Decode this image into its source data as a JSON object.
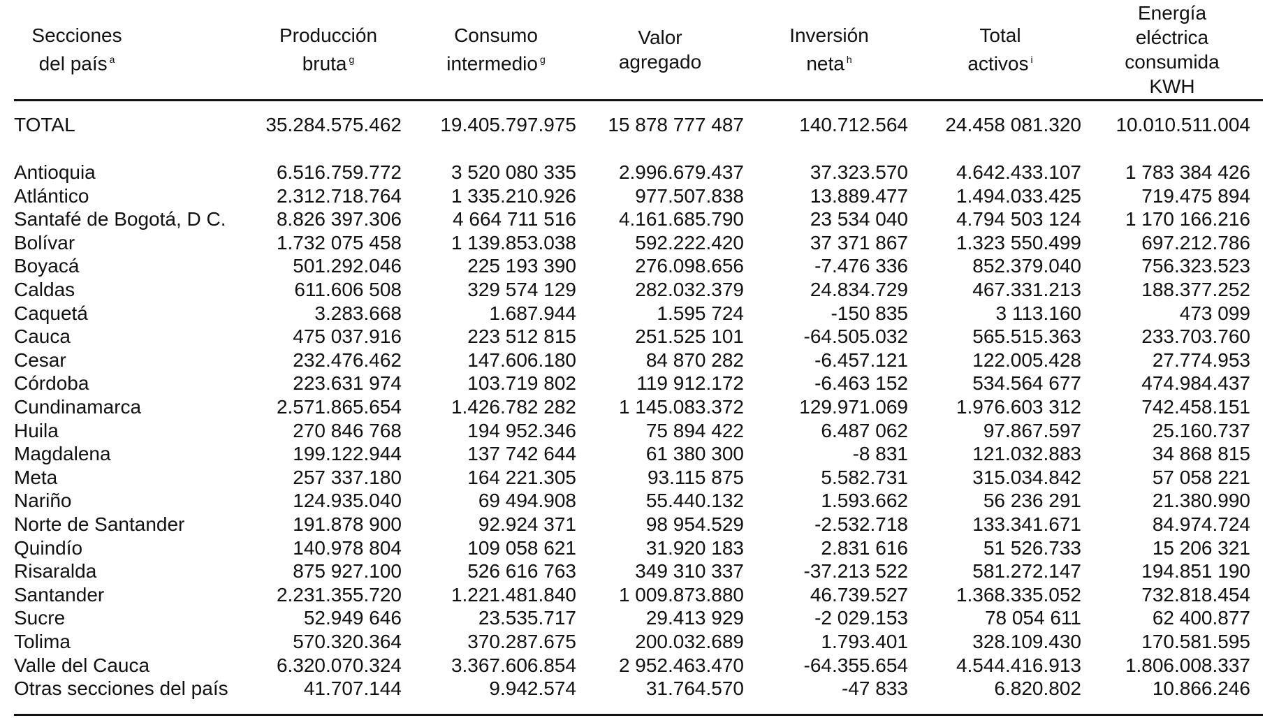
{
  "table": {
    "headers": [
      {
        "text": "Secciones\ndel país",
        "sup": "a"
      },
      {
        "text": "Producción\nbruta",
        "sup": "g"
      },
      {
        "text": "Consumo\nintermedio",
        "sup": "g"
      },
      {
        "text": "Valor\nagregado",
        "sup": ""
      },
      {
        "text": "Inversión\nneta",
        "sup": "h"
      },
      {
        "text": "Total\nactivos",
        "sup": "i"
      },
      {
        "text": "Energía\neléctrica\nconsumida\nKWH",
        "sup": ""
      }
    ],
    "total_row": [
      "TOTAL",
      "35.284.575.462",
      "19.405.797.975",
      "15 878 777 487",
      "140.712.564",
      "24.458 081.320",
      "10.010.511.004"
    ],
    "rows": [
      [
        "Antioquia",
        "6.516.759.772",
        "3 520 080 335",
        "2.996.679.437",
        "37.323.570",
        "4.642.433.107",
        "1 783 384 426"
      ],
      [
        "Atlántico",
        "2.312.718.764",
        "1 335.210.926",
        "977.507.838",
        "13.889.477",
        "1.494.033.425",
        "719.475 894"
      ],
      [
        "Santafé de Bogotá, D C.",
        "8.826 397.306",
        "4 664 711 516",
        "4.161.685.790",
        "23 534 040",
        "4.794 503 124",
        "1 170 166.216"
      ],
      [
        "Bolívar",
        "1.732 075 458",
        "1 139.853.038",
        "592.222.420",
        "37 371 867",
        "1.323 550.499",
        "697.212.786"
      ],
      [
        "Boyacá",
        "501.292.046",
        "225 193 390",
        "276.098.656",
        "-7.476 336",
        "852.379.040",
        "756.323.523"
      ],
      [
        "Caldas",
        "611.606 508",
        "329 574 129",
        "282.032.379",
        "24.834.729",
        "467.331.213",
        "188.377.252"
      ],
      [
        "Caquetá",
        "3.283.668",
        "1.687.944",
        "1.595 724",
        "-150 835",
        "3 113.160",
        "473 099"
      ],
      [
        "Cauca",
        "475 037.916",
        "223 512 815",
        "251.525 101",
        "-64.505.032",
        "565.515.363",
        "233.703.760"
      ],
      [
        "Cesar",
        "232.476.462",
        "147.606.180",
        "84 870 282",
        "-6.457.121",
        "122.005.428",
        "27.774.953"
      ],
      [
        "Córdoba",
        "223.631 974",
        "103.719 802",
        "119 912.172",
        "-6.463 152",
        "534.564 677",
        "474.984.437"
      ],
      [
        "Cundinamarca",
        "2.571.865.654",
        "1.426.782 282",
        "1 145.083.372",
        "129.971.069",
        "1.976.603 312",
        "742.458.151"
      ],
      [
        "Huila",
        "270 846 768",
        "194 952.346",
        "75 894 422",
        "6.487 062",
        "97.867.597",
        "25.160.737"
      ],
      [
        "Magdalena",
        "199.122.944",
        "137 742 644",
        "61 380 300",
        "-8 831",
        "121.032.883",
        "34 868 815"
      ],
      [
        "Meta",
        "257 337.180",
        "164 221.305",
        "93.115 875",
        "5.582.731",
        "315.034.842",
        "57 058 221"
      ],
      [
        "Nariño",
        "124.935.040",
        "69 494.908",
        "55.440.132",
        "1.593.662",
        "56 236 291",
        "21.380.990"
      ],
      [
        "Norte de Santander",
        "191.878 900",
        "92.924 371",
        "98 954.529",
        "-2.532.718",
        "133.341.671",
        "84.974.724"
      ],
      [
        "Quindío",
        "140.978 804",
        "109 058 621",
        "31.920 183",
        "2.831 616",
        "51 526.733",
        "15 206 321"
      ],
      [
        "Risaralda",
        "875 927.100",
        "526 616 763",
        "349 310 337",
        "-37.213 522",
        "581.272.147",
        "194.851 190"
      ],
      [
        "Santander",
        "2.231.355.720",
        "1.221.481.840",
        "1 009.873.880",
        "46.739.527",
        "1.368.335.052",
        "732.818.454"
      ],
      [
        "Sucre",
        "52.949 646",
        "23.535.717",
        "29.413 929",
        "-2 029.153",
        "78 054 611",
        "62 400.877"
      ],
      [
        "Tolima",
        "570.320.364",
        "370.287.675",
        "200.032.689",
        "1.793.401",
        "328.109.430",
        "170.581.595"
      ],
      [
        "Valle del Cauca",
        "6.320.070.324",
        "3.367.606.854",
        "2 952.463.470",
        "-64.355.654",
        "4.544.416.913",
        "1.806.008.337"
      ],
      [
        "Otras secciones del país",
        "41.707.144",
        "9.942.574",
        "31.764.570",
        "-47 833",
        "6.820.802",
        "10.866.246"
      ]
    ]
  }
}
